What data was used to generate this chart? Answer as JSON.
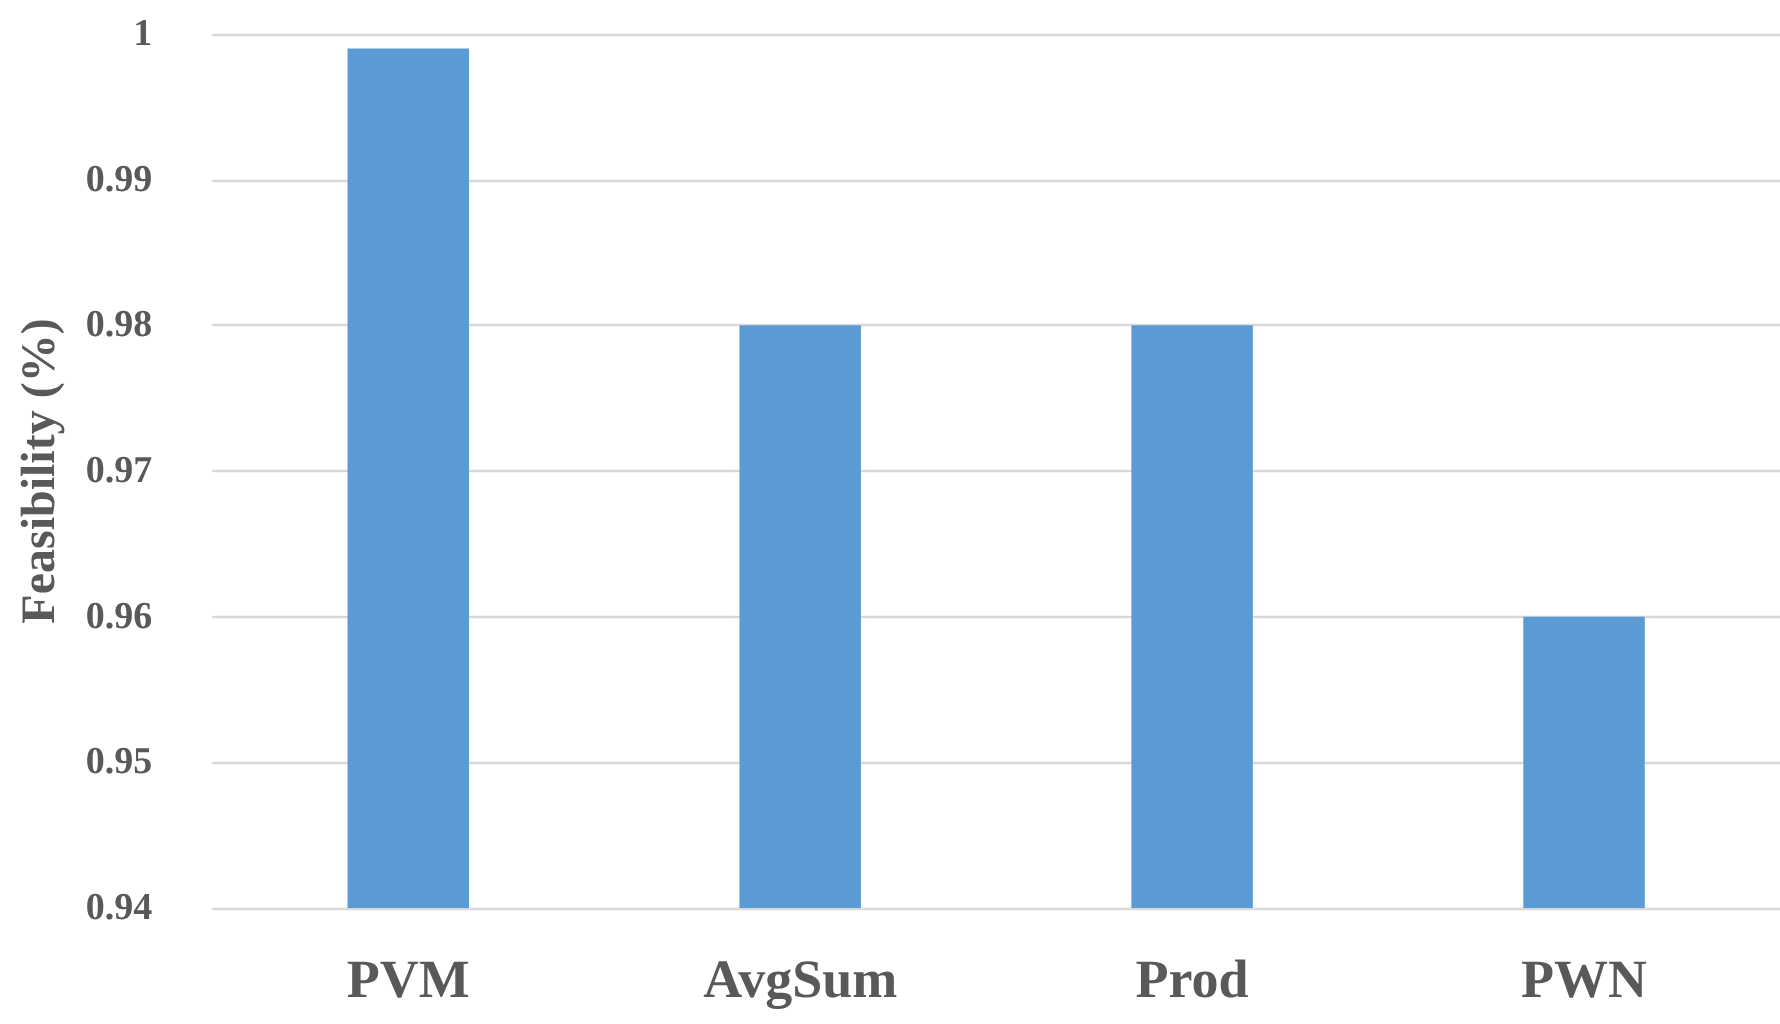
{
  "chart_data": {
    "type": "bar",
    "ylabel": "Feasibility (%)",
    "categories": [
      "PVM",
      "AvgSum",
      "Prod",
      "PWN"
    ],
    "values": [
      0.999,
      0.98,
      0.98,
      0.96
    ],
    "color": "#5b9bd5",
    "ylim": [
      0.94,
      1
    ],
    "yticks": [
      0.94,
      0.95,
      0.96,
      0.97,
      0.98,
      0.99,
      1
    ],
    "grid": "y"
  }
}
